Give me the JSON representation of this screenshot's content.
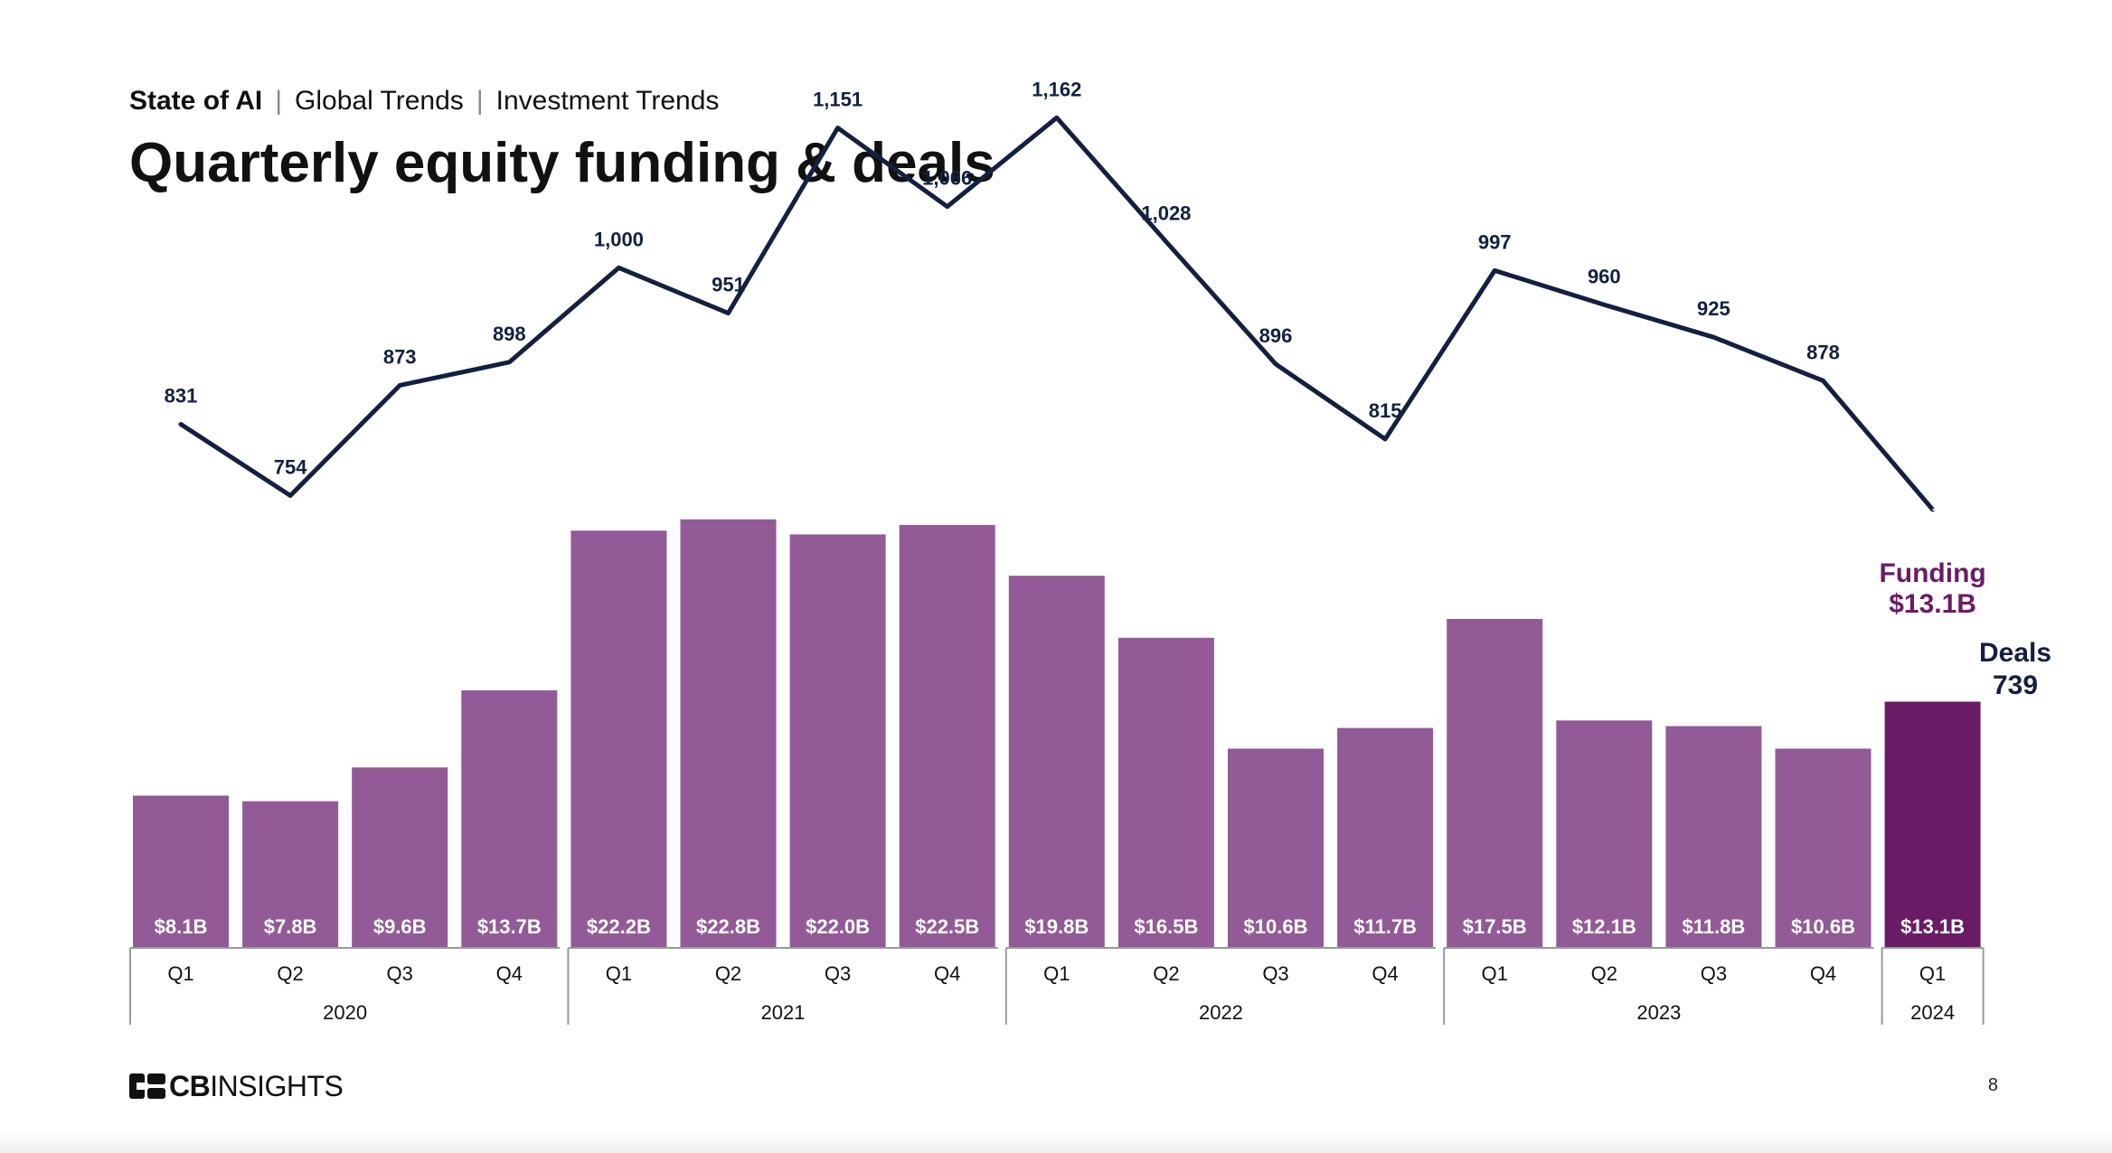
{
  "header": {
    "breadcrumb": [
      "State of AI",
      "Global Trends",
      "Investment Trends"
    ],
    "title": "Quarterly equity funding & deals"
  },
  "footer": {
    "brand_bold": "CB",
    "brand_rest": "INSIGHTS",
    "page_number": "8"
  },
  "colors": {
    "bar": "#925A96",
    "bar_highlight": "#6A1B66",
    "line": "#13203F",
    "funding_label": "#6A1B66",
    "deals_label": "#13203F"
  },
  "chart_data": {
    "type": "bar",
    "categories": [
      "Q1",
      "Q2",
      "Q3",
      "Q4",
      "Q1",
      "Q2",
      "Q3",
      "Q4",
      "Q1",
      "Q2",
      "Q3",
      "Q4",
      "Q1",
      "Q2",
      "Q3",
      "Q4",
      "Q1"
    ],
    "years": [
      {
        "label": "2020",
        "quarters": 4
      },
      {
        "label": "2021",
        "quarters": 4
      },
      {
        "label": "2022",
        "quarters": 4
      },
      {
        "label": "2023",
        "quarters": 4
      },
      {
        "label": "2024",
        "quarters": 1
      }
    ],
    "series": [
      {
        "name": "Funding",
        "type": "bar",
        "values": [
          8.1,
          7.8,
          9.6,
          13.7,
          22.2,
          22.8,
          22.0,
          22.5,
          19.8,
          16.5,
          10.6,
          11.7,
          17.5,
          12.1,
          11.8,
          10.6,
          13.1
        ],
        "labels": [
          "$8.1B",
          "$7.8B",
          "$9.6B",
          "$13.7B",
          "$22.2B",
          "$22.8B",
          "$22.0B",
          "$22.5B",
          "$19.8B",
          "$16.5B",
          "$10.6B",
          "$11.7B",
          "$17.5B",
          "$12.1B",
          "$11.8B",
          "$10.6B",
          "$13.1B"
        ]
      },
      {
        "name": "Deals",
        "type": "line",
        "values": [
          831,
          754,
          873,
          898,
          1000,
          951,
          1151,
          1066,
          1162,
          1028,
          896,
          815,
          997,
          960,
          925,
          878,
          739
        ],
        "labels": [
          "831",
          "754",
          "873",
          "898",
          "1,000",
          "951",
          "1,151",
          "1,066",
          "1,162",
          "1,028",
          "896",
          "815",
          "997",
          "960",
          "925",
          "878",
          "739"
        ]
      }
    ],
    "callouts": {
      "funding_title": "Funding",
      "funding_value": "$13.1B",
      "deals_title": "Deals",
      "deals_value": "739"
    },
    "highlight_index": 16
  }
}
